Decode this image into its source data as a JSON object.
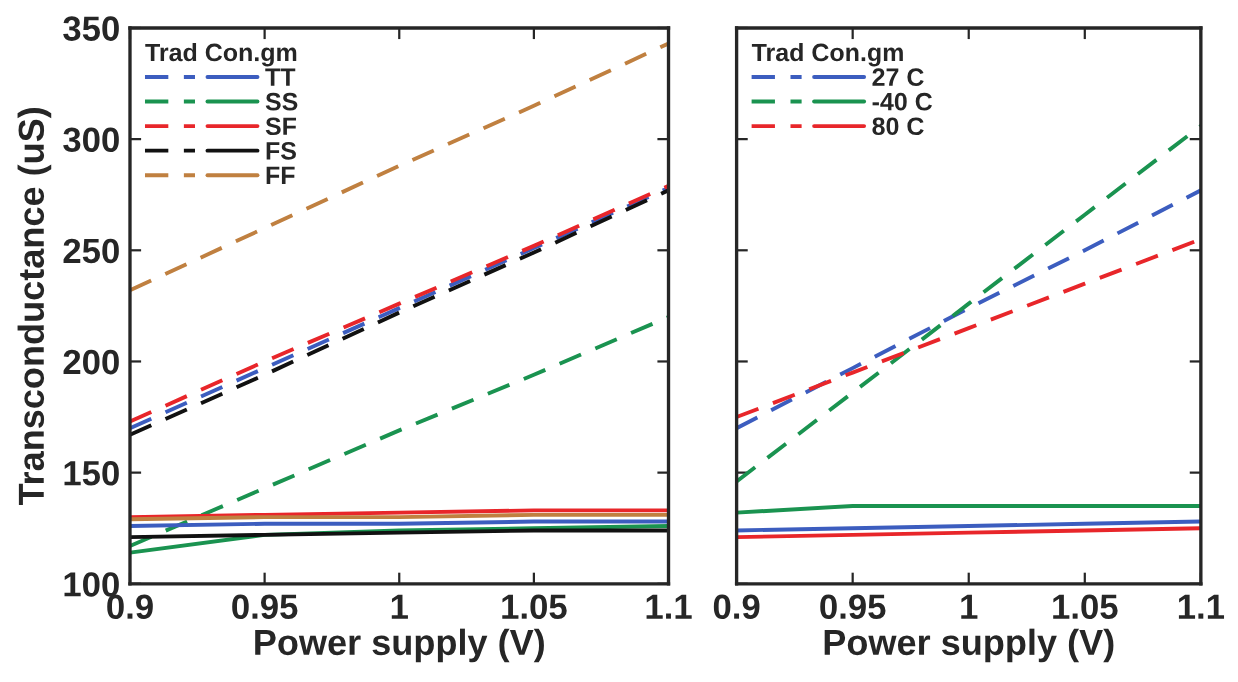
{
  "chart_data": [
    {
      "type": "line",
      "x": [
        0.9,
        0.95,
        1.0,
        1.05,
        1.1
      ],
      "xlabel": "Power supply (V)",
      "ylabel": "Transconductance (uS)",
      "xlim": [
        0.9,
        1.1
      ],
      "xticks": [
        0.9,
        0.95,
        1,
        1.05,
        1.1
      ],
      "ylim": [
        100,
        350
      ],
      "yticks": [
        100,
        150,
        200,
        250,
        300,
        350
      ],
      "grid": false,
      "legend": "top left",
      "legend_title": "Trad Con.gm",
      "series": [
        {
          "color": "#3c5dbf",
          "line_style": "dashed",
          "values": [
            170,
            197,
            224,
            251,
            278
          ]
        },
        {
          "color": "#1a9350",
          "line_style": "dashed",
          "values": [
            117,
            143,
            169,
            194,
            220
          ]
        },
        {
          "color": "#e8262a",
          "line_style": "dashed",
          "values": [
            173,
            200,
            226,
            252,
            279
          ]
        },
        {
          "color": "#111111",
          "line_style": "dashed",
          "values": [
            167,
            194,
            222,
            249,
            277
          ]
        },
        {
          "color": "#c08040",
          "line_style": "dashed",
          "values": [
            232,
            260,
            288,
            315,
            343
          ]
        },
        {
          "name": "TT",
          "color": "#3c5dbf",
          "line_style": "solid",
          "values": [
            126,
            127,
            127,
            128,
            128
          ]
        },
        {
          "name": "SS",
          "color": "#1a9350",
          "line_style": "solid",
          "values": [
            114,
            122,
            124,
            125,
            126
          ]
        },
        {
          "name": "SF",
          "color": "#e8262a",
          "line_style": "solid",
          "values": [
            130,
            131,
            132,
            133,
            133
          ]
        },
        {
          "name": "FS",
          "color": "#111111",
          "line_style": "solid",
          "values": [
            121,
            122,
            123,
            124,
            124
          ]
        },
        {
          "name": "FF",
          "color": "#c08040",
          "line_style": "solid",
          "values": [
            129,
            130,
            130,
            131,
            131
          ]
        }
      ]
    },
    {
      "type": "line",
      "x": [
        0.9,
        0.95,
        1.0,
        1.05,
        1.1
      ],
      "xlabel": "Power supply (V)",
      "xlim": [
        0.9,
        1.1
      ],
      "xticks": [
        0.9,
        0.95,
        1,
        1.05,
        1.1
      ],
      "ylim": [
        100,
        350
      ],
      "yticks": [
        100,
        150,
        200,
        250,
        300,
        350
      ],
      "tick_labels": "x",
      "grid": false,
      "legend": "top left",
      "legend_title": "Trad Con.gm",
      "series": [
        {
          "color": "#3c5dbf",
          "line_style": "dashed",
          "values": [
            170,
            197,
            224,
            250,
            277
          ]
        },
        {
          "color": "#1a9350",
          "line_style": "dashed",
          "values": [
            146,
            186,
            226,
            266,
            306
          ]
        },
        {
          "color": "#e8262a",
          "line_style": "dashed",
          "values": [
            175,
            195,
            215,
            235,
            255
          ]
        },
        {
          "name": "27 C",
          "color": "#3c5dbf",
          "line_style": "solid",
          "values": [
            124,
            125,
            126,
            127,
            128
          ]
        },
        {
          "name": "-40 C",
          "color": "#1a9350",
          "line_style": "solid",
          "values": [
            132,
            135,
            135,
            135,
            135
          ]
        },
        {
          "name": "80 C",
          "color": "#e8262a",
          "line_style": "solid",
          "values": [
            121,
            122,
            123,
            124,
            125
          ]
        }
      ]
    }
  ]
}
